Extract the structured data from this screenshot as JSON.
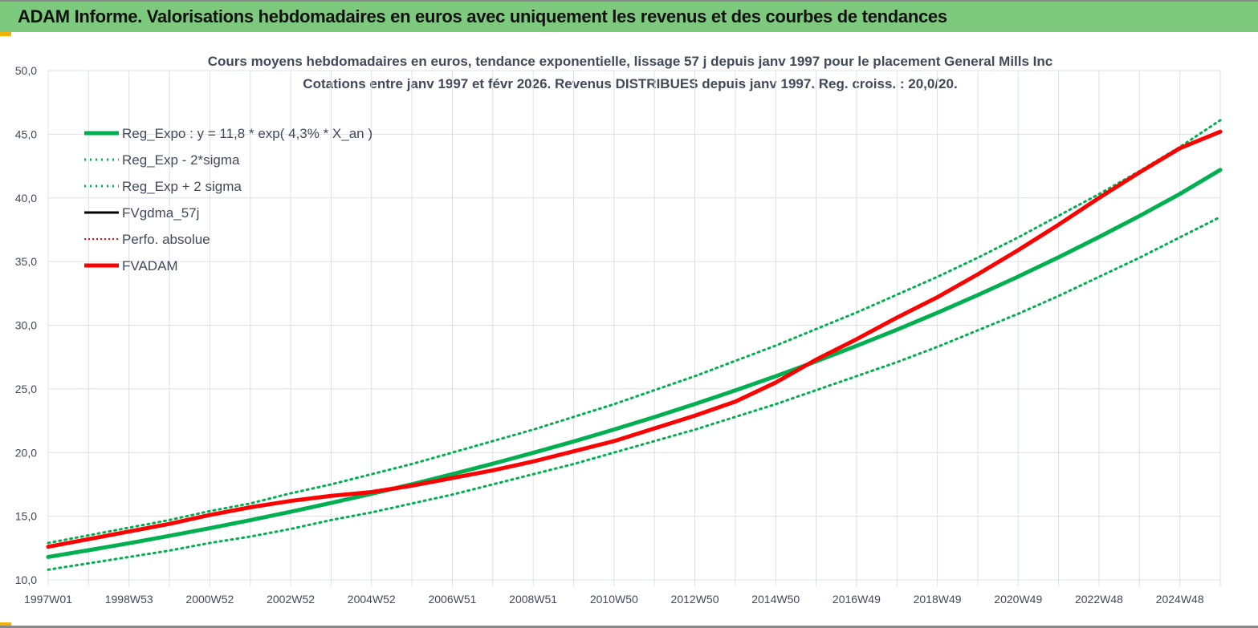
{
  "header": {
    "title": "ADAM Informe. Valorisations hebdomadaires en euros avec uniquement les revenus et des courbes de tendances"
  },
  "chart_data": {
    "type": "line",
    "title": "Cours moyens hebdomadaires en euros, tendance exponentielle, lissage 57 j depuis janv 1997 pour le placement General Mills Inc",
    "subtitle": "Cotations entre janv 1997 et févr 2026. Revenus DISTRIBUES depuis janv 1997. Reg. croiss. : 20,0/20.",
    "ylim": [
      10,
      50
    ],
    "yticks": [
      "10,0",
      "15,0",
      "20,0",
      "25,0",
      "30,0",
      "35,0",
      "40,0",
      "45,0",
      "50,0"
    ],
    "xticks": [
      "1997W01",
      "1998W53",
      "2000W52",
      "2002W52",
      "2004W52",
      "2006W51",
      "2008W51",
      "2010W50",
      "2012W50",
      "2014W50",
      "2016W49",
      "2018W49",
      "2020W49",
      "2022W48",
      "2024W48"
    ],
    "x_years": [
      0,
      1,
      2,
      3,
      4,
      5,
      6,
      7,
      8,
      9,
      10,
      11,
      12,
      13,
      14,
      15,
      16,
      17,
      18,
      19,
      20,
      21,
      22,
      23,
      24,
      25,
      26,
      27,
      28,
      29
    ],
    "legend_placement": "top-left",
    "series": [
      {
        "name": "Reg_Expo : y = 11,8 * exp( 4,3% *  X_an )",
        "color": "#00b050",
        "style": "solid-thick",
        "values": [
          11.8,
          12.33,
          12.88,
          13.46,
          14.06,
          14.69,
          15.35,
          16.04,
          16.76,
          17.51,
          18.3,
          19.12,
          19.98,
          20.87,
          21.81,
          22.79,
          23.81,
          24.88,
          25.99,
          27.16,
          28.38,
          29.65,
          30.98,
          32.37,
          33.82,
          35.34,
          36.93,
          38.58,
          40.31,
          42.2
        ]
      },
      {
        "name": "Reg_Exp - 2*sigma",
        "color": "#00b050",
        "style": "dotted",
        "values": [
          10.8,
          11.3,
          11.8,
          12.3,
          12.9,
          13.4,
          14.0,
          14.7,
          15.3,
          16.0,
          16.7,
          17.5,
          18.3,
          19.1,
          20.0,
          20.9,
          21.8,
          22.8,
          23.8,
          24.9,
          26.0,
          27.1,
          28.3,
          29.6,
          30.9,
          32.3,
          33.8,
          35.3,
          36.9,
          38.5
        ]
      },
      {
        "name": "Reg_Exp + 2 sigma",
        "color": "#00b050",
        "style": "dotted",
        "values": [
          12.9,
          13.5,
          14.1,
          14.7,
          15.4,
          16.0,
          16.8,
          17.5,
          18.3,
          19.1,
          20.0,
          20.9,
          21.8,
          22.8,
          23.8,
          24.9,
          26.0,
          27.2,
          28.4,
          29.7,
          31.0,
          32.4,
          33.8,
          35.3,
          36.9,
          38.6,
          40.3,
          42.1,
          44.0,
          46.1
        ]
      },
      {
        "name": "FVgdma_57j",
        "color": "#000000",
        "style": "solid",
        "values": []
      },
      {
        "name": "Perfo. absolue",
        "color": "#ff0000",
        "style": "dotted-thin",
        "values": []
      },
      {
        "name": "FVADAM",
        "color": "#ff0000",
        "style": "solid-thick",
        "values": [
          12.6,
          13.2,
          13.8,
          14.4,
          15.1,
          15.7,
          16.2,
          16.6,
          16.9,
          17.4,
          18.0,
          18.6,
          19.3,
          20.1,
          20.9,
          21.9,
          22.9,
          24.0,
          25.5,
          27.3,
          28.9,
          30.6,
          32.2,
          34.0,
          35.9,
          37.9,
          40.0,
          42.0,
          43.9,
          45.2
        ]
      }
    ]
  }
}
